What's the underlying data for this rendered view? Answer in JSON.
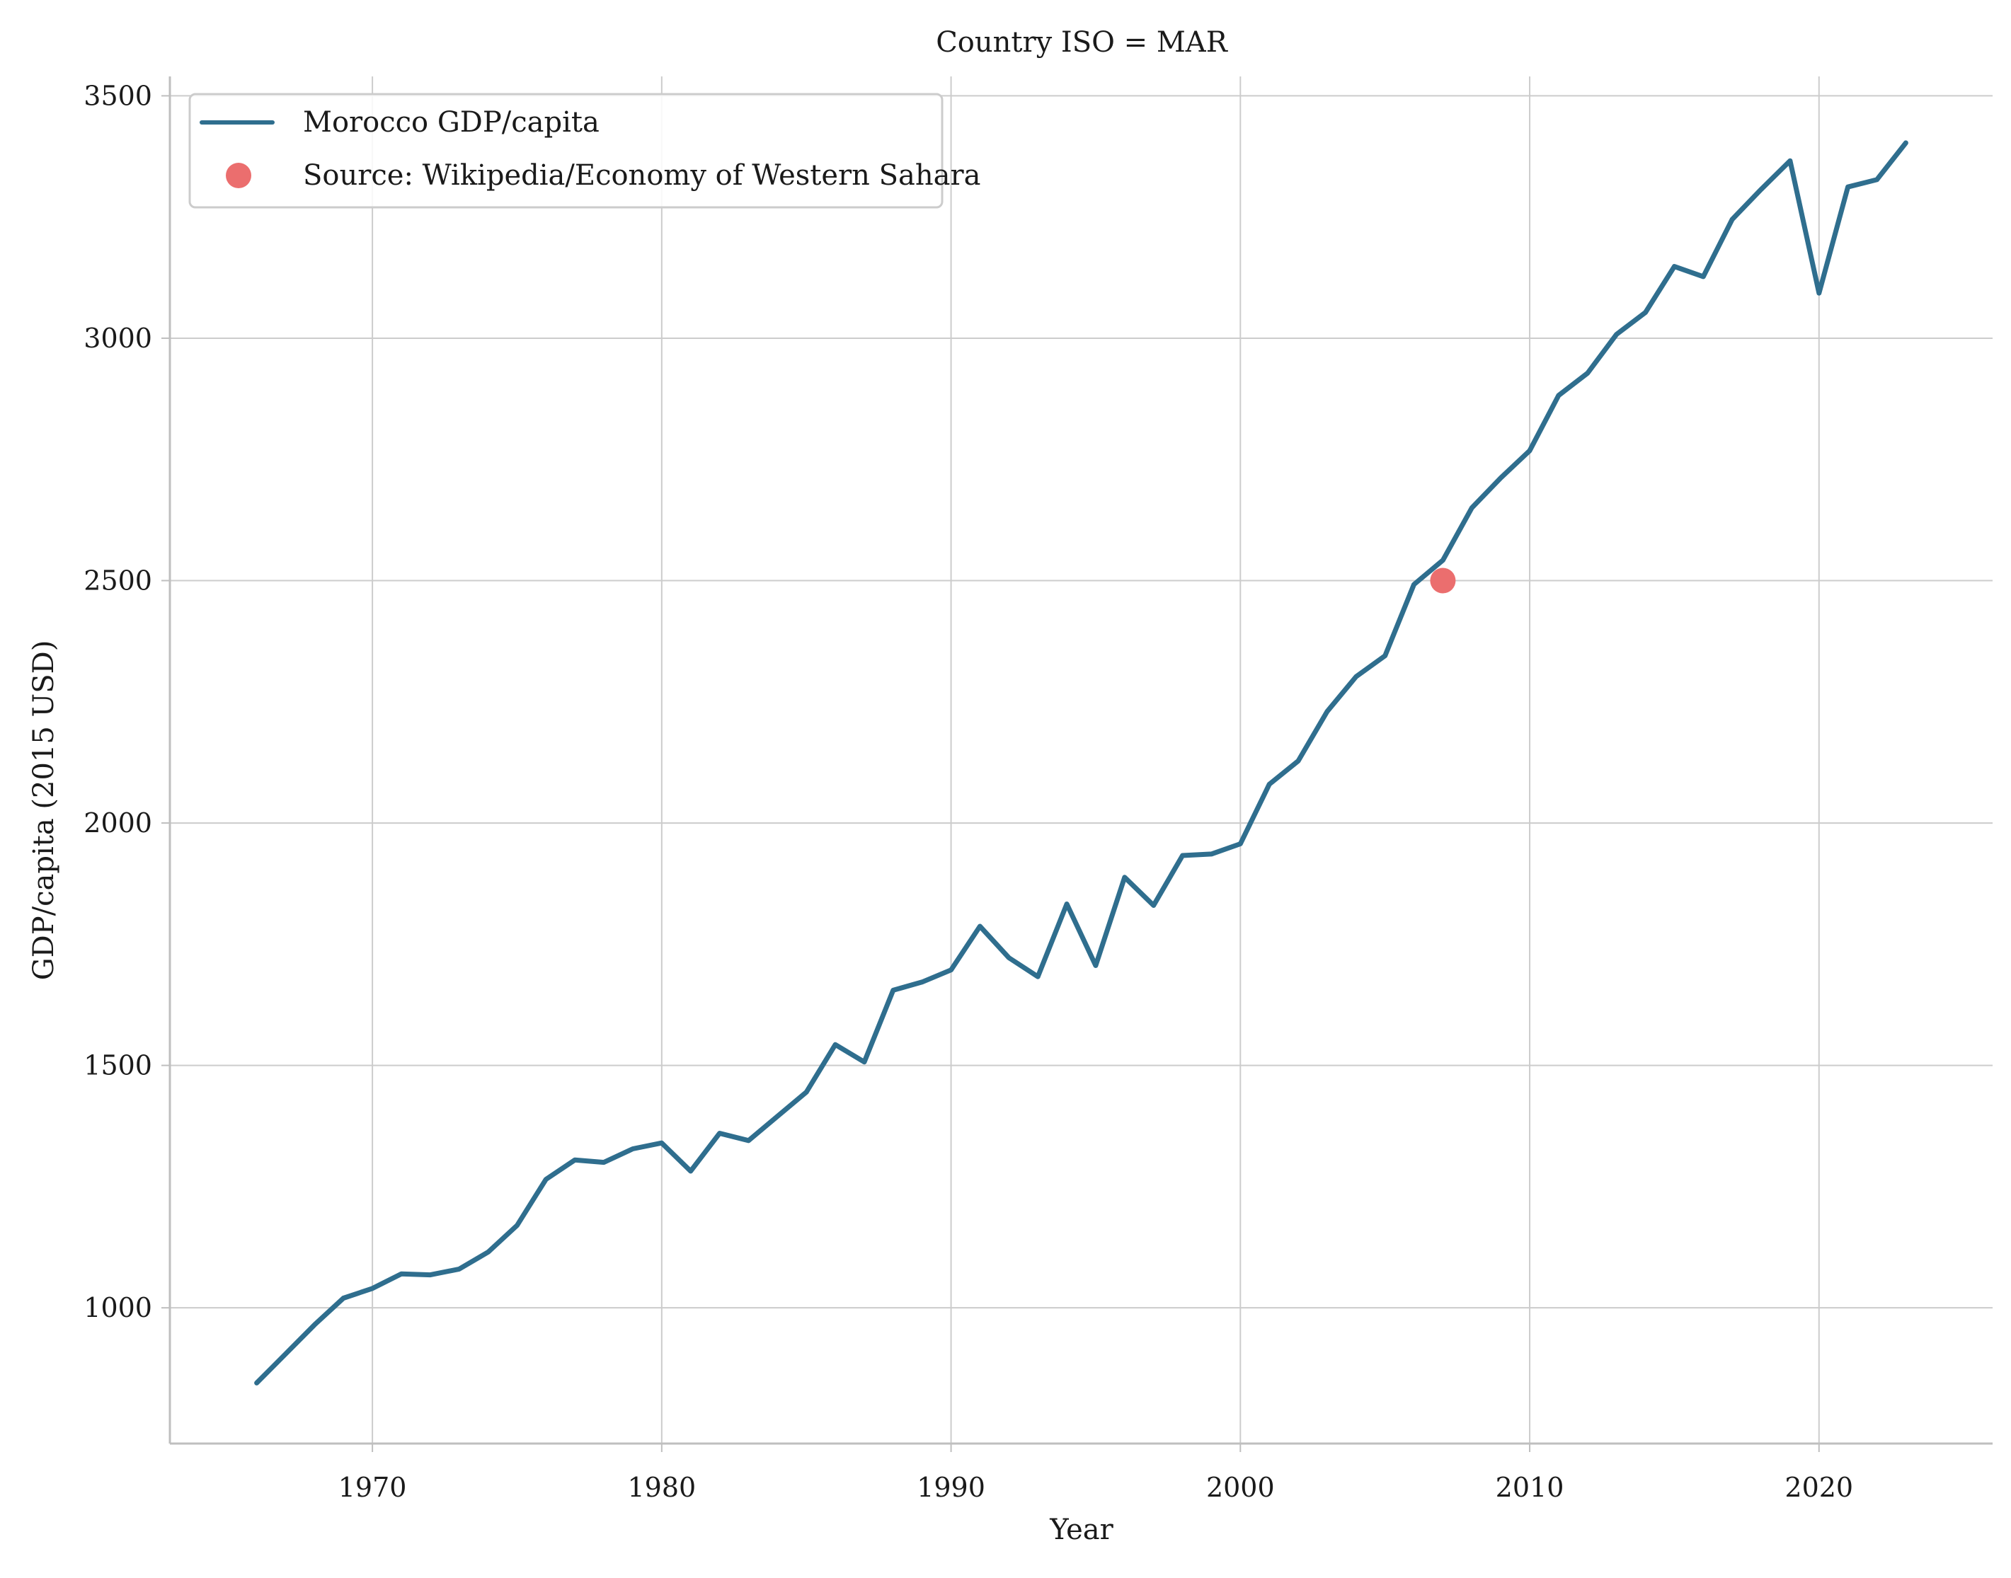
{
  "chart_data": {
    "type": "line",
    "title": "Country ISO = MAR",
    "xlabel": "Year",
    "ylabel": "GDP/capita (2015 USD)",
    "xlim": [
      1963,
      2026
    ],
    "ylim": [
      720,
      3540
    ],
    "x_ticks": [
      1970,
      1980,
      1990,
      2000,
      2010,
      2020
    ],
    "y_ticks": [
      1000,
      1500,
      2000,
      2500,
      3000,
      3500
    ],
    "grid": true,
    "legend_position": "top-left",
    "series": [
      {
        "name": "Morocco GDP/capita",
        "color": "#2f6e8e",
        "x": [
          1966,
          1967,
          1968,
          1969,
          1970,
          1971,
          1972,
          1973,
          1974,
          1975,
          1976,
          1977,
          1978,
          1979,
          1980,
          1981,
          1982,
          1983,
          1984,
          1985,
          1986,
          1987,
          1988,
          1989,
          1990,
          1991,
          1992,
          1993,
          1994,
          1995,
          1996,
          1997,
          1998,
          1999,
          2000,
          2001,
          2002,
          2003,
          2004,
          2005,
          2006,
          2007,
          2008,
          2009,
          2010,
          2011,
          2012,
          2013,
          2014,
          2015,
          2016,
          2017,
          2018,
          2019,
          2020,
          2021,
          2022,
          2023
        ],
        "y": [
          845,
          905,
          965,
          1020,
          1040,
          1070,
          1068,
          1080,
          1115,
          1170,
          1265,
          1305,
          1300,
          1328,
          1340,
          1282,
          1360,
          1345,
          1395,
          1445,
          1543,
          1507,
          1655,
          1672,
          1697,
          1787,
          1722,
          1683,
          1833,
          1706,
          1888,
          1830,
          1933,
          1936,
          1957,
          2080,
          2128,
          2230,
          2302,
          2345,
          2492,
          2542,
          2650,
          2712,
          2768,
          2882,
          2928,
          3008,
          3053,
          3148,
          3127,
          3245,
          3307,
          3366,
          3093,
          3312,
          3327,
          3403
        ]
      }
    ],
    "points": [
      {
        "name": "Source: Wikipedia/Economy of Western Sahara",
        "color": "#eb6e6e",
        "x": 2007,
        "y": 2500
      }
    ]
  }
}
